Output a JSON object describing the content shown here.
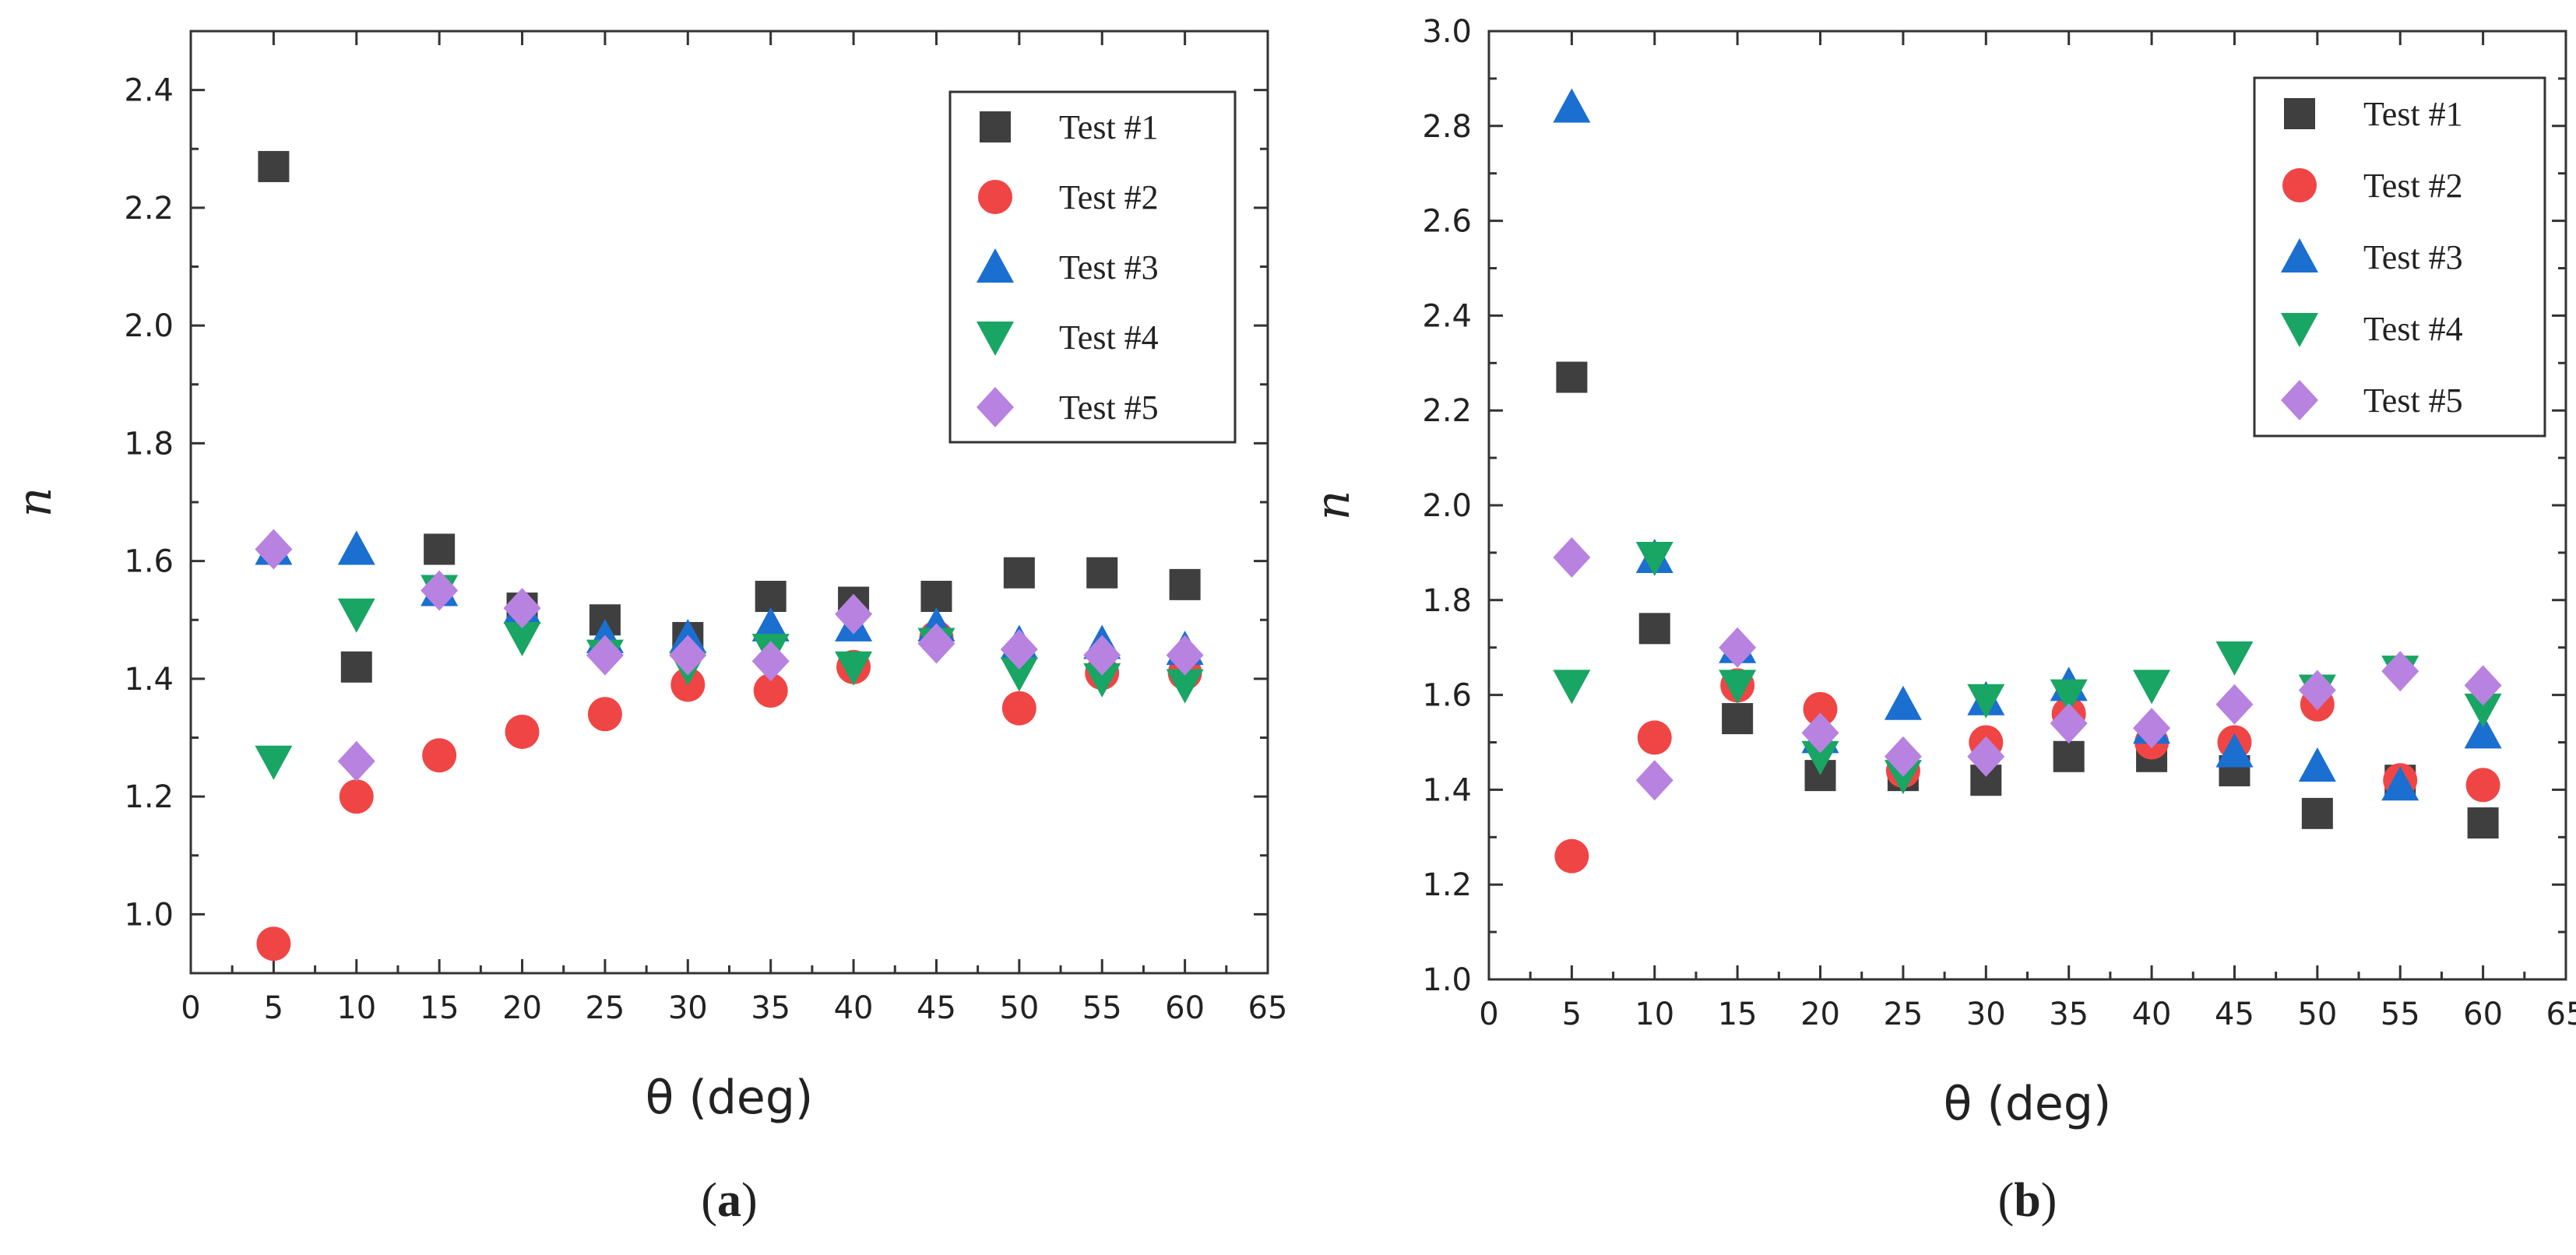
{
  "colors": {
    "Test #1": "#3f3f3f",
    "Test #2": "#f04545",
    "Test #3": "#1a6fd0",
    "Test #4": "#19a563",
    "Test #5": "#b882e0"
  },
  "markers": {
    "Test #1": "square",
    "Test #2": "circle",
    "Test #3": "triangle-up",
    "Test #4": "triangle-down",
    "Test #5": "diamond"
  },
  "chart_data": [
    {
      "type": "scatter",
      "panel": "a",
      "caption": {
        "open": "(",
        "letter": "a",
        "close": ")"
      },
      "title": "",
      "xlabel": "θ (deg)",
      "ylabel": "n",
      "xlim": [
        0,
        65
      ],
      "ylim": [
        0.9,
        2.5
      ],
      "xticks": [
        0,
        5,
        10,
        15,
        20,
        25,
        30,
        35,
        40,
        45,
        50,
        55,
        60,
        65
      ],
      "yticks": [
        1.0,
        1.2,
        1.4,
        1.6,
        1.8,
        2.0,
        2.2,
        2.4
      ],
      "legend_position": "top-right",
      "x": [
        5,
        10,
        15,
        20,
        25,
        30,
        35,
        40,
        45,
        50,
        55,
        60
      ],
      "series": [
        {
          "name": "Test #1",
          "values": [
            2.27,
            1.42,
            1.62,
            1.52,
            1.5,
            1.47,
            1.54,
            1.53,
            1.54,
            1.58,
            1.58,
            1.56
          ]
        },
        {
          "name": "Test #2",
          "values": [
            0.95,
            1.2,
            1.27,
            1.31,
            1.34,
            1.39,
            1.38,
            1.42,
            1.47,
            1.35,
            1.41,
            1.41
          ]
        },
        {
          "name": "Test #3",
          "values": [
            1.62,
            1.62,
            1.55,
            1.52,
            1.47,
            1.47,
            1.49,
            1.49,
            1.49,
            1.46,
            1.46,
            1.45
          ]
        },
        {
          "name": "Test #4",
          "values": [
            1.26,
            1.51,
            1.55,
            1.47,
            1.44,
            1.42,
            1.45,
            1.42,
            1.46,
            1.41,
            1.4,
            1.39
          ]
        },
        {
          "name": "Test #5",
          "values": [
            1.62,
            1.26,
            1.55,
            1.52,
            1.44,
            1.44,
            1.43,
            1.51,
            1.46,
            1.45,
            1.44,
            1.44
          ]
        }
      ]
    },
    {
      "type": "scatter",
      "panel": "b",
      "caption": {
        "open": "(",
        "letter": "b",
        "close": ")"
      },
      "title": "",
      "xlabel": "θ (deg)",
      "ylabel": "n",
      "xlim": [
        0,
        65
      ],
      "ylim": [
        1.0,
        3.0
      ],
      "xticks": [
        0,
        5,
        10,
        15,
        20,
        25,
        30,
        35,
        40,
        45,
        50,
        55,
        60,
        65
      ],
      "yticks": [
        1.0,
        1.2,
        1.4,
        1.6,
        1.8,
        2.0,
        2.2,
        2.4,
        2.6,
        2.8,
        3.0
      ],
      "legend_position": "top-right",
      "x": [
        5,
        10,
        15,
        20,
        25,
        30,
        35,
        40,
        45,
        50,
        55,
        60
      ],
      "series": [
        {
          "name": "Test #1",
          "values": [
            2.27,
            1.74,
            1.55,
            1.43,
            1.43,
            1.42,
            1.47,
            1.47,
            1.44,
            1.35,
            1.42,
            1.33
          ]
        },
        {
          "name": "Test #2",
          "values": [
            1.26,
            1.51,
            1.62,
            1.57,
            1.44,
            1.5,
            1.56,
            1.5,
            1.5,
            1.58,
            1.42,
            1.41
          ]
        },
        {
          "name": "Test #3",
          "values": [
            2.84,
            1.89,
            1.7,
            1.51,
            1.58,
            1.59,
            1.62,
            1.53,
            1.48,
            1.45,
            1.41,
            1.52
          ]
        },
        {
          "name": "Test #4",
          "values": [
            1.62,
            1.89,
            1.62,
            1.47,
            1.43,
            1.59,
            1.6,
            1.62,
            1.68,
            1.61,
            1.65,
            1.57
          ]
        },
        {
          "name": "Test #5",
          "values": [
            1.89,
            1.42,
            1.7,
            1.52,
            1.47,
            1.47,
            1.54,
            1.53,
            1.58,
            1.61,
            1.65,
            1.62
          ]
        }
      ]
    }
  ]
}
